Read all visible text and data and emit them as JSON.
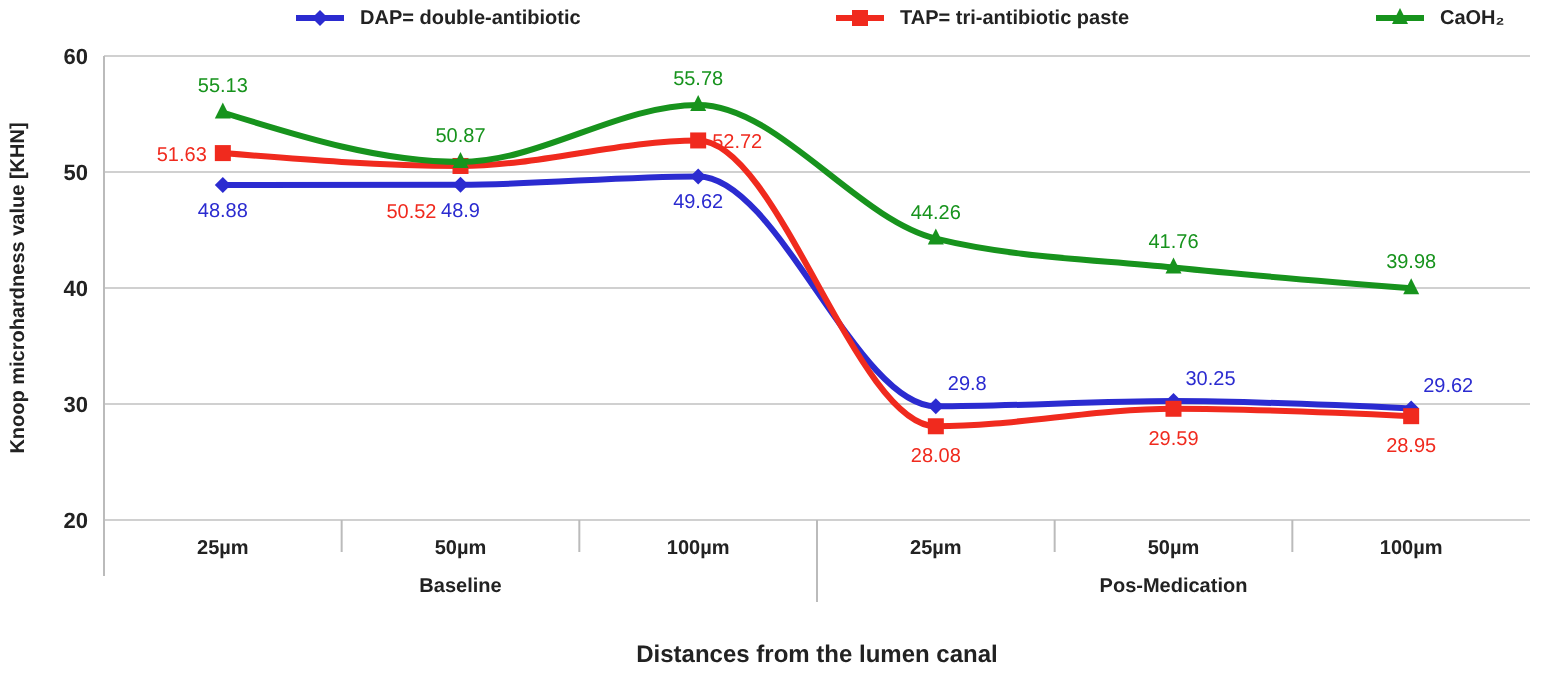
{
  "chart_data": {
    "type": "line",
    "categories": [
      "25µm",
      "50µm",
      "100µm",
      "25µm",
      "50µm",
      "100µm"
    ],
    "series": [
      {
        "name": "DAP= double-antibiotic",
        "color": "#2b2bd0",
        "marker": "diamond",
        "values": [
          48.88,
          48.9,
          49.62,
          29.8,
          30.25,
          29.62
        ]
      },
      {
        "name": "TAP= tri-antibiotic paste",
        "color": "#f02a1e",
        "marker": "square",
        "values": [
          51.63,
          50.52,
          52.72,
          28.08,
          29.59,
          28.95
        ]
      },
      {
        "name": "CaOH₂",
        "color": "#17931d",
        "marker": "triangle",
        "values": [
          55.13,
          50.87,
          55.78,
          44.26,
          41.76,
          39.98
        ]
      }
    ],
    "ylim": [
      20,
      60
    ],
    "yticks": [
      20,
      30,
      40,
      50,
      60
    ],
    "grid": "y",
    "legend": "top",
    "data_labels": true,
    "ylabel": "Knoop microhardness  value [KHN]",
    "xlabel": "Distances from the lumen canal",
    "annotations": [
      "Baseline",
      "Pos-Medication"
    ]
  }
}
